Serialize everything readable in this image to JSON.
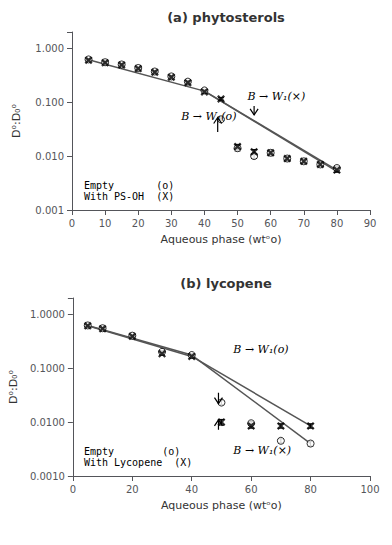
{
  "chart_data": [
    {
      "type": "scatter",
      "title": "(a) phytosterols",
      "xlabel": "Aqueous phase (wtᵒo)",
      "ylabel": "D⁰:D₀⁰",
      "log": "y",
      "grid": false,
      "xlim": [
        0,
        90
      ],
      "xticks": [
        0,
        10,
        20,
        30,
        40,
        50,
        60,
        70,
        80,
        90
      ],
      "ylim": [
        0.001,
        2.0
      ],
      "yticks": [
        0.001,
        {
          "value": 0.01,
          "label": "0.010"
        },
        {
          "value": 0.1,
          "label": "0.100"
        },
        {
          "value": 1.0,
          "label": "1.000"
        }
      ],
      "series": [
        {
          "type": "line",
          "color": "#555555",
          "x": [
            5,
            40
          ],
          "values": [
            0.61,
            0.16
          ]
        },
        {
          "type": "line",
          "color": "#555555",
          "x": [
            40,
            80
          ],
          "values": [
            0.16,
            0.0055
          ]
        },
        {
          "type": "line",
          "color": "#555555",
          "x": [
            40,
            80
          ],
          "values": [
            0.16,
            0.0052
          ]
        },
        {
          "type": "scatter",
          "marker": "circle-open",
          "color": "#000000",
          "x": [
            5,
            10,
            15,
            20,
            25,
            30,
            35,
            40,
            45,
            50,
            55,
            60,
            65,
            70,
            75,
            80
          ],
          "values": [
            0.62,
            0.55,
            0.5,
            0.43,
            0.37,
            0.3,
            0.24,
            0.165,
            0.048,
            0.014,
            0.01,
            0.0115,
            0.009,
            0.008,
            0.007,
            0.006
          ],
          "errors": [
            0.02,
            0.015,
            0.015,
            0.015,
            0.012,
            0.012,
            0.01,
            0.008,
            0.003,
            0.0015,
            0.001,
            0.001,
            0.0008,
            0.0007,
            0.0006,
            0.0005
          ]
        },
        {
          "type": "scatter",
          "marker": "x",
          "color": "#000000",
          "x": [
            5,
            10,
            15,
            20,
            25,
            30,
            35,
            40,
            45,
            50,
            55,
            60,
            65,
            70,
            75,
            80
          ],
          "values": [
            0.6,
            0.54,
            0.49,
            0.42,
            0.36,
            0.29,
            0.23,
            0.155,
            0.115,
            0.015,
            0.012,
            0.0115,
            0.009,
            0.008,
            0.007,
            0.0055
          ],
          "errors": [
            0.02,
            0.015,
            0.015,
            0.015,
            0.012,
            0.012,
            0.01,
            0.008,
            0.006,
            0.0015,
            0.0012,
            0.001,
            0.0008,
            0.0007,
            0.0006,
            0.0005
          ]
        }
      ],
      "arrows": [
        {
          "x": 44,
          "y_start": 0.028,
          "y_end": 0.052
        },
        {
          "x": 55,
          "y_start": 0.085,
          "y_end": 0.058
        }
      ],
      "annotations": [
        {
          "x": 33,
          "y": 0.055,
          "text": "B → W₁(o)"
        },
        {
          "x": 53,
          "y": 0.13,
          "text": "B → W₁(×)"
        }
      ],
      "legend_text": [
        "Empty       (o)",
        "With PS-OH  (X)"
      ]
    },
    {
      "type": "scatter",
      "title": "(b) lycopene",
      "xlabel": "Aqueous phase (wtᵒo)",
      "ylabel": "D⁰:D₀⁰",
      "log": "y",
      "grid": false,
      "xlim": [
        0,
        100
      ],
      "xticks": [
        0,
        20,
        40,
        60,
        80,
        100
      ],
      "ylim": [
        0.001,
        2.0
      ],
      "yticks": [
        {
          "value": 0.001,
          "label": "0.0010"
        },
        {
          "value": 0.01,
          "label": "0.0100"
        },
        {
          "value": 0.1,
          "label": "0.1000"
        },
        {
          "value": 1.0,
          "label": "1.0000"
        }
      ],
      "series": [
        {
          "type": "line",
          "color": "#555555",
          "x": [
            5,
            40
          ],
          "values": [
            0.62,
            0.175
          ]
        },
        {
          "type": "line",
          "color": "#555555",
          "x": [
            40,
            80
          ],
          "values": [
            0.175,
            0.004
          ]
        },
        {
          "type": "line",
          "color": "#555555",
          "x": [
            5,
            40
          ],
          "values": [
            0.61,
            0.165
          ]
        },
        {
          "type": "line",
          "color": "#555555",
          "x": [
            40,
            80
          ],
          "values": [
            0.165,
            0.0085
          ]
        },
        {
          "type": "scatter",
          "marker": "circle-open",
          "color": "#000000",
          "x": [
            5,
            10,
            20,
            30,
            40,
            50,
            60,
            70,
            80
          ],
          "values": [
            0.62,
            0.55,
            0.4,
            0.2,
            0.175,
            0.023,
            0.0095,
            0.0045,
            0.004
          ],
          "errors": [
            0.02,
            0.015,
            0.012,
            0.01,
            0.01,
            0.002,
            0.0008,
            0.0004,
            0.0004
          ]
        },
        {
          "type": "scatter",
          "marker": "x",
          "color": "#000000",
          "x": [
            5,
            10,
            20,
            30,
            40,
            50,
            60,
            70,
            80
          ],
          "values": [
            0.61,
            0.54,
            0.39,
            0.185,
            0.165,
            0.01,
            0.0085,
            0.0085,
            0.0085
          ],
          "errors": [
            0.02,
            0.015,
            0.012,
            0.01,
            0.01,
            0.0012,
            0.0008,
            0.0008,
            0.0008
          ]
        }
      ],
      "arrows": [
        {
          "x": 49,
          "y_start": 0.035,
          "y_end": 0.022
        },
        {
          "x": 49,
          "y_start": 0.0072,
          "y_end": 0.011
        }
      ],
      "annotations": [
        {
          "x": 54,
          "y": 0.22,
          "text": "B → W₁(o)"
        },
        {
          "x": 54,
          "y": 0.003,
          "text": "B → W₁(×)"
        }
      ],
      "legend_text": [
        "Empty        (o)",
        "With Lycopene  (X)"
      ]
    }
  ]
}
